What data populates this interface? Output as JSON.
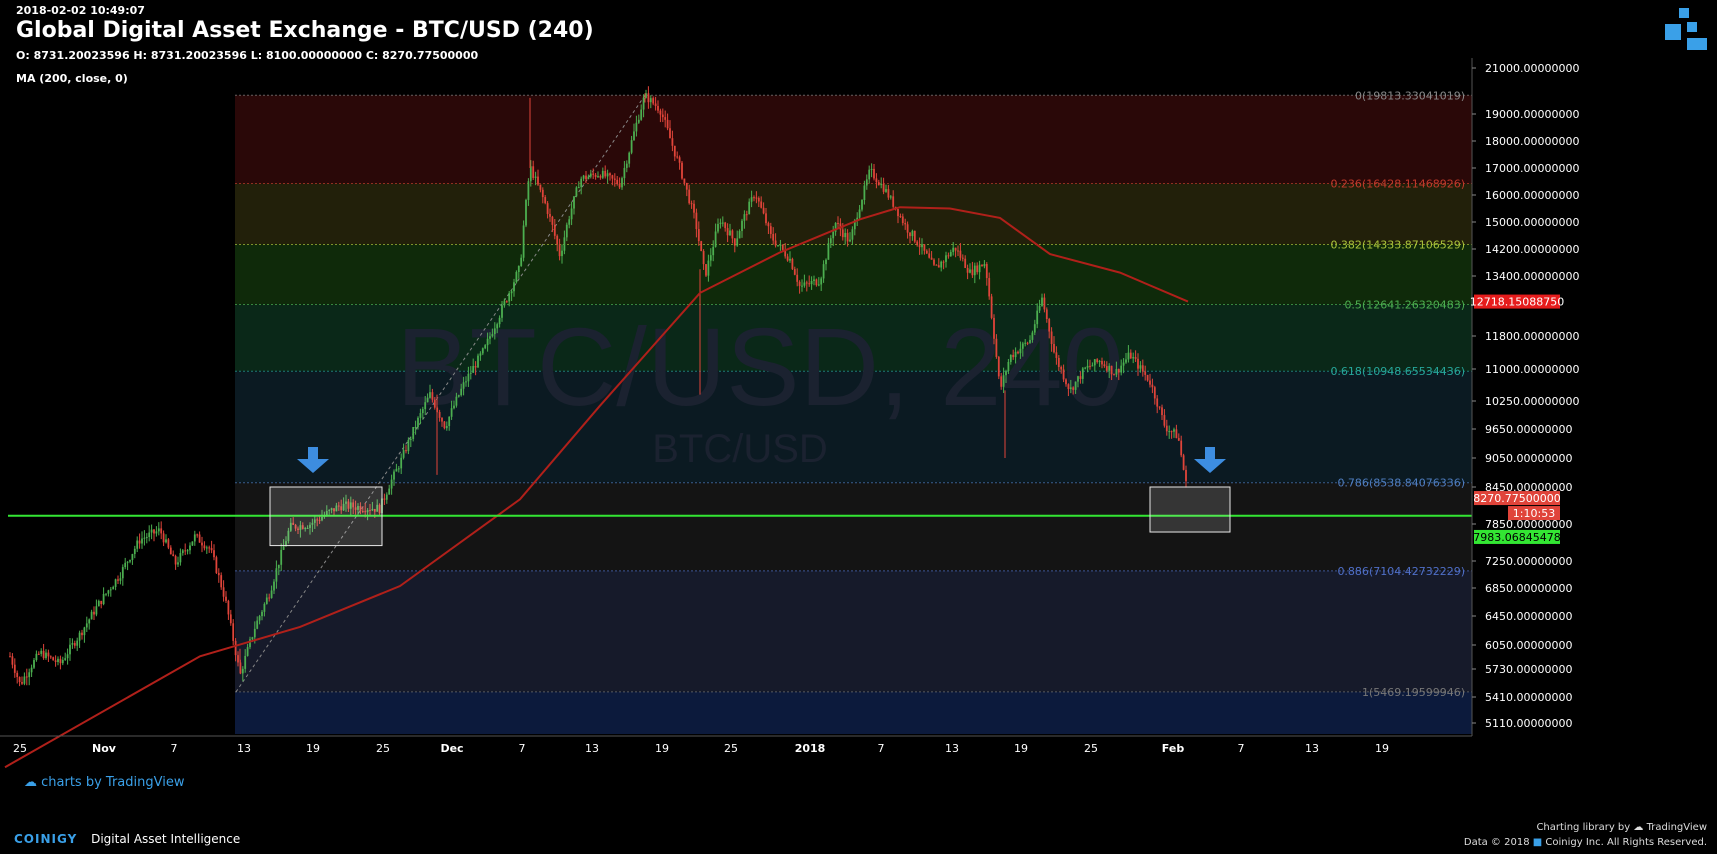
{
  "header": {
    "timestamp": "2018-02-02 10:49:07",
    "title": "Global Digital Asset Exchange - BTC/USD (240)",
    "ohlc": "O: 8731.20023596 H: 8731.20023596 L: 8100.00000000 C: 8270.77500000",
    "indicator": "MA (200, close, 0)"
  },
  "watermark": {
    "main": "BTC/USD, 240",
    "sub": "BTC/USD"
  },
  "tradingview_badge": "charts by TradingView",
  "footer": {
    "brand": "COINIGY",
    "tagline": "Digital Asset Intelligence",
    "charting_library": "Charting library by",
    "tv_name": "TradingView",
    "data_credit": "Data © 2018",
    "company": "Coinigy Inc. All Rights Reserved."
  },
  "colors": {
    "background": "#000000",
    "up_candle": "#4caf50",
    "down_candle": "#e0443a",
    "ma_line": "#b0201a",
    "support_line": "#33e633",
    "arrow": "#3d8de0",
    "price_label_current": "#e0443a",
    "price_label_ma": "#e61c1c",
    "price_label_support": "#33e633"
  },
  "chart_data": {
    "type": "candlestick",
    "symbol": "BTC/USD",
    "interval": "240",
    "x_ticks": [
      "25",
      "Nov",
      "7",
      "13",
      "19",
      "25",
      "Dec",
      "7",
      "13",
      "19",
      "25",
      "2018",
      "7",
      "13",
      "19",
      "25",
      "Feb",
      "7",
      "13",
      "19"
    ],
    "y_ticks": [
      "21000.00000000",
      "19000.00000000",
      "18000.00000000",
      "17000.00000000",
      "16000.00000000",
      "15000.00000000",
      "14200.00000000",
      "13400.00000000",
      "11800.00000000",
      "11000.00000000",
      "10250.00000000",
      "9650.00000000",
      "9050.00000000",
      "8450.00000000",
      "7850.00000000",
      "7250.00000000",
      "6850.00000000",
      "6450.00000000",
      "6050.00000000",
      "5730.00000000",
      "5410.00000000",
      "5110.00000000"
    ],
    "price_labels": {
      "ma": "12718.15088750",
      "close": "8270.77500000",
      "countdown": "1:10:53",
      "support": "7983.06845478"
    },
    "fib_levels": [
      {
        "ratio": "0",
        "price": "19813.33041019",
        "label": "0(19813.33041019)",
        "color": "#888888",
        "band": "#2a0808"
      },
      {
        "ratio": "0.236",
        "price": "16428.11468926",
        "label": "0.236(16428.11468926)",
        "color": "#c03a2b",
        "band": "#22200a"
      },
      {
        "ratio": "0.382",
        "price": "14333.87106529",
        "label": "0.382(14333.87106529)",
        "color": "#a9c23a",
        "band": "#0f2a0a"
      },
      {
        "ratio": "0.5",
        "price": "12641.26320483",
        "label": "0.5(12641.26320483)",
        "color": "#4caf50",
        "band": "#0a2818"
      },
      {
        "ratio": "0.618",
        "price": "10948.65534436",
        "label": "0.618(10948.65534436)",
        "color": "#26a69a",
        "band": "#0b1a22"
      },
      {
        "ratio": "0.786",
        "price": "8538.84076336",
        "label": "0.786(8538.84076336)",
        "color": "#4f7dc0",
        "band": "#141414"
      },
      {
        "ratio": "0.886",
        "price": "7104.42732229",
        "label": "0.886(7104.42732229)",
        "color": "#4f6fc8",
        "band": "#161a2a"
      },
      {
        "ratio": "1",
        "price": "5469.19599946",
        "label": "1(5469.19599946)",
        "color": "#777777",
        "band": "#0c1a3c"
      }
    ],
    "support_price": 7983.07,
    "ma_points": [
      [
        5,
        4600
      ],
      [
        200,
        5900
      ],
      [
        300,
        6300
      ],
      [
        400,
        6880
      ],
      [
        520,
        8250
      ],
      [
        600,
        10150
      ],
      [
        700,
        12950
      ],
      [
        780,
        14100
      ],
      [
        860,
        15100
      ],
      [
        900,
        15550
      ],
      [
        950,
        15500
      ],
      [
        1000,
        15150
      ],
      [
        1050,
        14050
      ],
      [
        1120,
        13500
      ],
      [
        1188,
        12718
      ]
    ],
    "price_path": [
      [
        10,
        5900
      ],
      [
        20,
        5550
      ],
      [
        40,
        5950
      ],
      [
        60,
        5800
      ],
      [
        80,
        6200
      ],
      [
        100,
        6650
      ],
      [
        120,
        7050
      ],
      [
        140,
        7600
      ],
      [
        160,
        7750
      ],
      [
        175,
        7200
      ],
      [
        195,
        7650
      ],
      [
        210,
        7450
      ],
      [
        225,
        6700
      ],
      [
        240,
        5650
      ],
      [
        255,
        6300
      ],
      [
        270,
        6800
      ],
      [
        290,
        7800
      ],
      [
        310,
        7850
      ],
      [
        340,
        8150
      ],
      [
        380,
        8100
      ],
      [
        400,
        8950
      ],
      [
        415,
        9700
      ],
      [
        430,
        10400
      ],
      [
        445,
        9700
      ],
      [
        465,
        10700
      ],
      [
        485,
        11500
      ],
      [
        505,
        12700
      ],
      [
        520,
        13650
      ],
      [
        530,
        17050
      ],
      [
        545,
        15700
      ],
      [
        560,
        14000
      ],
      [
        580,
        16600
      ],
      [
        600,
        16800
      ],
      [
        620,
        16400
      ],
      [
        645,
        19800
      ],
      [
        660,
        19200
      ],
      [
        680,
        17000
      ],
      [
        695,
        15100
      ],
      [
        705,
        13400
      ],
      [
        720,
        15100
      ],
      [
        735,
        14400
      ],
      [
        755,
        16100
      ],
      [
        770,
        14600
      ],
      [
        790,
        13900
      ],
      [
        800,
        13100
      ],
      [
        820,
        13300
      ],
      [
        835,
        15000
      ],
      [
        850,
        14400
      ],
      [
        870,
        16900
      ],
      [
        885,
        16200
      ],
      [
        905,
        14900
      ],
      [
        920,
        14300
      ],
      [
        935,
        13600
      ],
      [
        955,
        14250
      ],
      [
        970,
        13500
      ],
      [
        985,
        13800
      ],
      [
        1000,
        10500
      ],
      [
        1010,
        11300
      ],
      [
        1030,
        11700
      ],
      [
        1042,
        12800
      ],
      [
        1055,
        11300
      ],
      [
        1070,
        10500
      ],
      [
        1085,
        11000
      ],
      [
        1100,
        11200
      ],
      [
        1115,
        10900
      ],
      [
        1130,
        11350
      ],
      [
        1150,
        10700
      ],
      [
        1165,
        9700
      ],
      [
        1178,
        9500
      ],
      [
        1188,
        8271
      ]
    ],
    "boxes": [
      {
        "x0": 270,
        "x1": 382,
        "y0": 7500,
        "y1": 8450
      },
      {
        "x0": 1150,
        "x1": 1230,
        "y0": 7720,
        "y1": 8450
      }
    ],
    "arrows": [
      {
        "x": 313
      },
      {
        "x": 1210
      }
    ]
  }
}
